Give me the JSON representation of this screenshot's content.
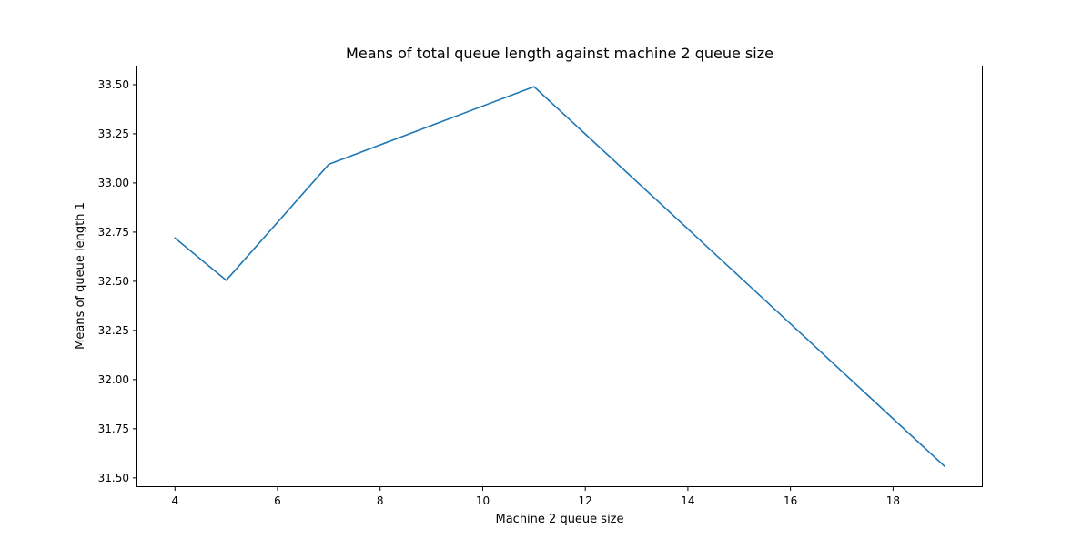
{
  "chart_data": {
    "type": "line",
    "title": "Means of total queue length against machine 2 queue size",
    "xlabel": "Machine 2 queue size",
    "ylabel": "Means of queue length 1",
    "xlim": [
      3.25,
      19.75
    ],
    "ylim": [
      31.453,
      33.597
    ],
    "x_ticks": [
      4,
      6,
      8,
      10,
      12,
      14,
      16,
      18
    ],
    "x_tick_labels": [
      "4",
      "6",
      "8",
      "10",
      "12",
      "14",
      "16",
      "18"
    ],
    "y_ticks": [
      31.5,
      31.75,
      32.0,
      32.25,
      32.5,
      32.75,
      33.0,
      33.25,
      33.5
    ],
    "y_tick_labels": [
      "31.50",
      "31.75",
      "32.00",
      "32.25",
      "32.50",
      "32.75",
      "33.00",
      "33.25",
      "33.50"
    ],
    "grid": false,
    "series": [
      {
        "color": "#1f77b4",
        "x": [
          4,
          5,
          7,
          11,
          19
        ],
        "y": [
          32.72,
          32.505,
          33.095,
          33.49,
          31.56
        ]
      }
    ]
  }
}
